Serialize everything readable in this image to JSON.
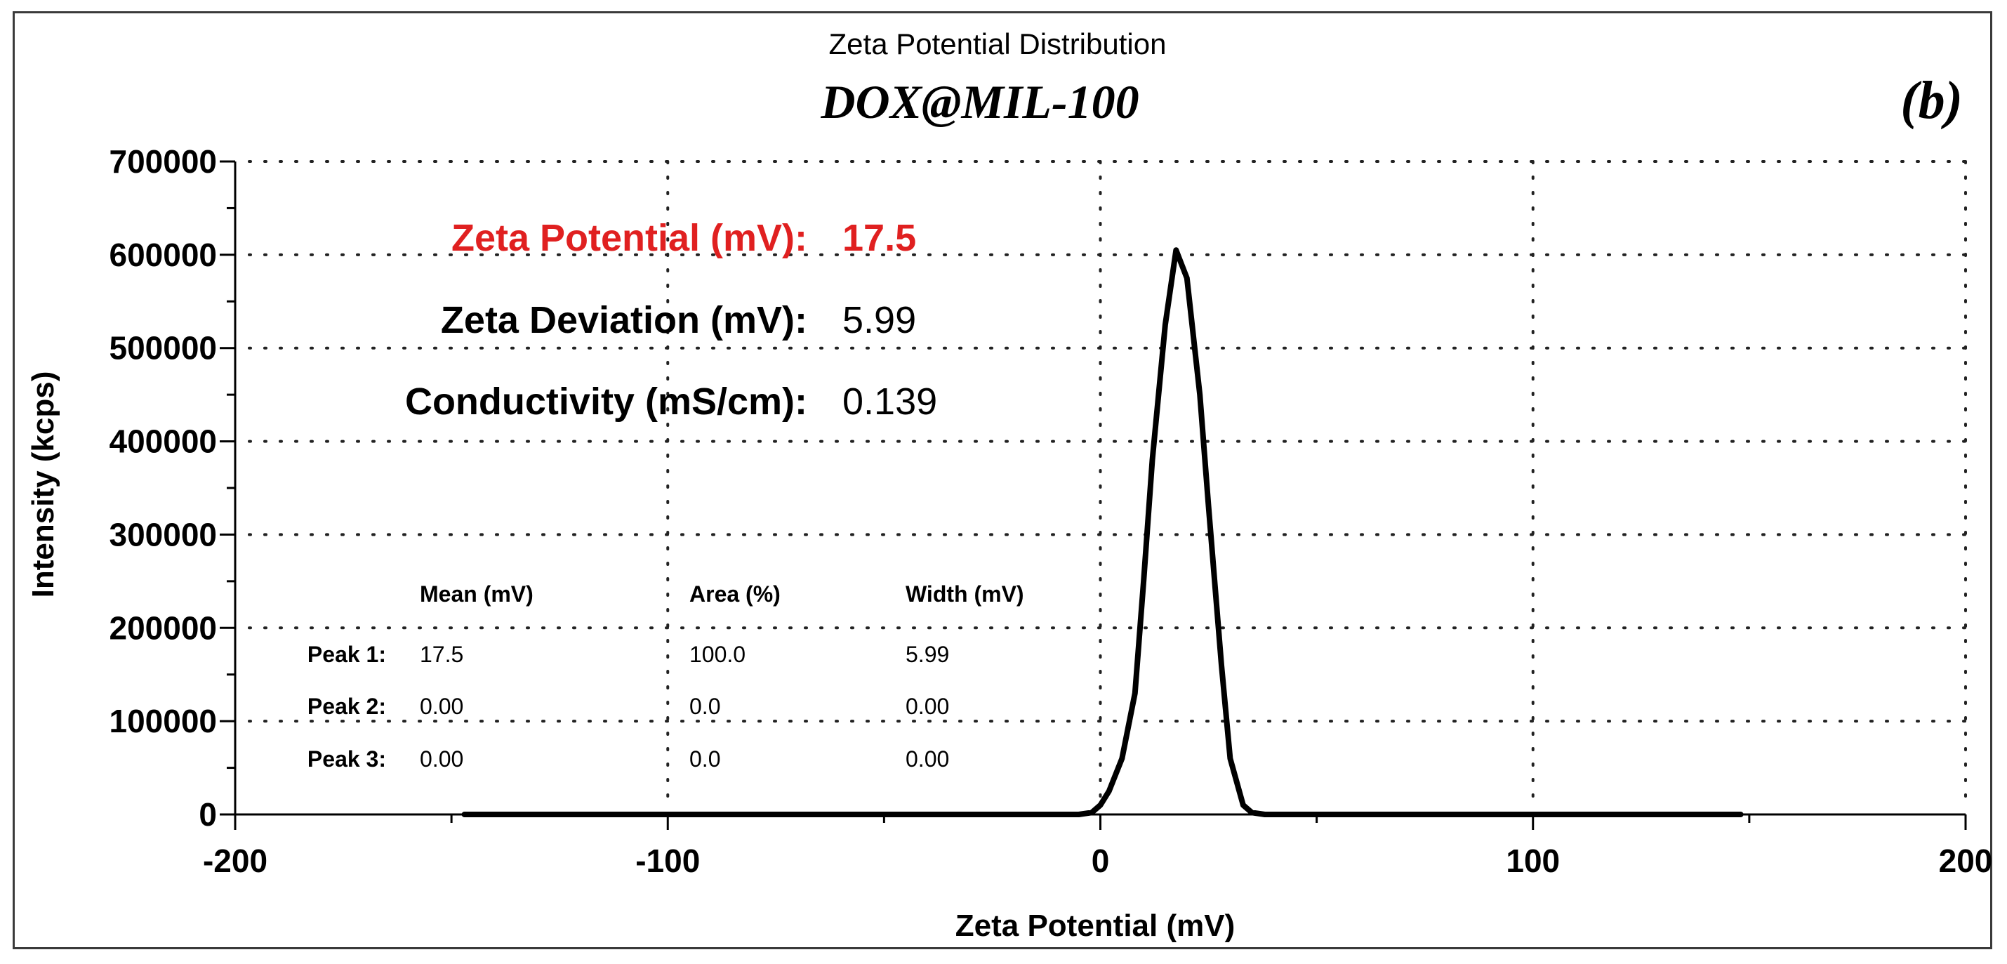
{
  "chart_data": {
    "type": "line",
    "title": "Zeta Potential Distribution",
    "subtitle": "DOX@MIL-100",
    "panel_label": "(b)",
    "xlabel": "Zeta Potential (mV)",
    "ylabel": "Intensity (kcps)",
    "xlim": [
      -200,
      200
    ],
    "ylim": [
      0,
      700000
    ],
    "x_ticks": [
      -200,
      -100,
      0,
      100,
      200
    ],
    "y_ticks": [
      0,
      100000,
      200000,
      300000,
      400000,
      500000,
      600000,
      700000
    ],
    "grid": true,
    "series": [
      {
        "name": "DOX@MIL-100",
        "color": "#000000",
        "x": [
          -147,
          -80,
          -20,
          -5,
          -2,
          0,
          2,
          5,
          8,
          10,
          12,
          15,
          17.5,
          20,
          23,
          25,
          28,
          30,
          33,
          35,
          38,
          50,
          100,
          148
        ],
        "y": [
          0,
          0,
          0,
          0,
          2000,
          10000,
          25000,
          60000,
          130000,
          250000,
          380000,
          525000,
          605000,
          575000,
          450000,
          330000,
          160000,
          60000,
          10000,
          2000,
          0,
          0,
          0,
          0
        ]
      }
    ],
    "stats": [
      {
        "label": "Zeta Potential (mV):",
        "value": "17.5",
        "color": "#e02020"
      },
      {
        "label": "Zeta Deviation (mV):",
        "value": "5.99",
        "color": "#000000"
      },
      {
        "label": "Conductivity (mS/cm):",
        "value": "0.139",
        "color": "#000000"
      }
    ],
    "peak_table": {
      "headers": [
        "Mean (mV)",
        "Area (%)",
        "Width (mV)"
      ],
      "rows": [
        {
          "label": "Peak 1:",
          "values": [
            "17.5",
            "100.0",
            "5.99"
          ]
        },
        {
          "label": "Peak 2:",
          "values": [
            "0.00",
            "0.0",
            "0.00"
          ]
        },
        {
          "label": "Peak 3:",
          "values": [
            "0.00",
            "0.0",
            "0.00"
          ]
        }
      ]
    }
  }
}
